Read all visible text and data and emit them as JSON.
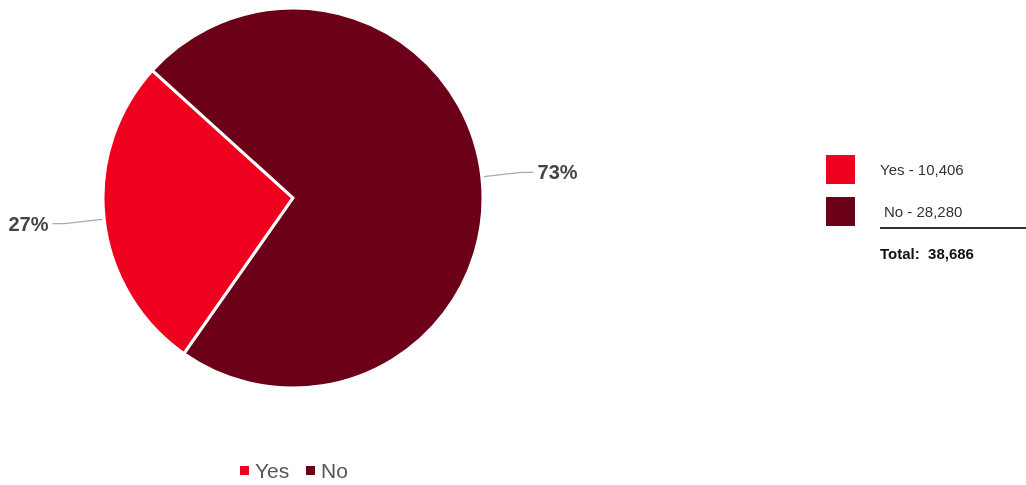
{
  "chart_data": {
    "type": "pie",
    "categories": [
      "Yes",
      "No"
    ],
    "values": [
      27,
      73
    ],
    "colors": [
      "#f0001e",
      "#6d0019"
    ],
    "value_labels": [
      "27%",
      "73%"
    ],
    "annotations": [
      "Yes - 10,406",
      "No - 28,280",
      "Total:  38,686"
    ],
    "legend": "bottom"
  }
}
